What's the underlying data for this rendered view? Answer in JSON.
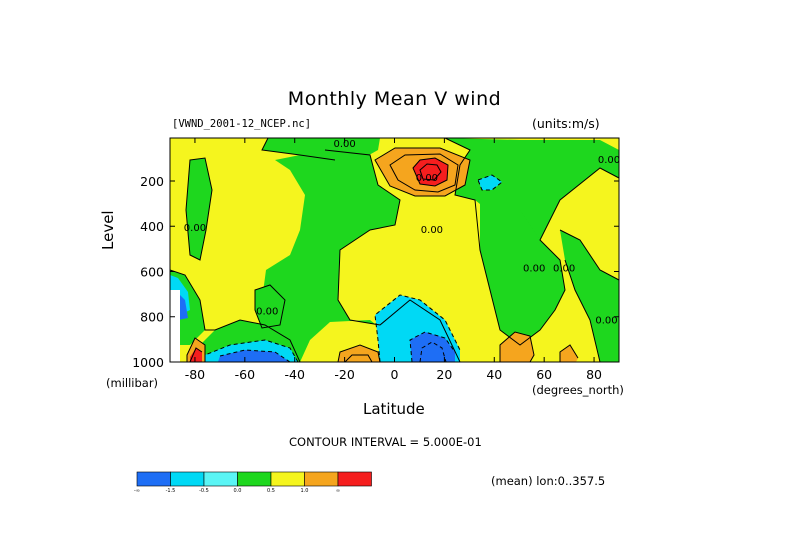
{
  "chart_data": {
    "type": "heatmap",
    "title": "Monthly Mean V wind",
    "file_label": "[VWND_2001-12_NCEP.nc]",
    "units_label": "(units:m/s)",
    "xlabel": "Latitude",
    "ylabel": "Level",
    "x_unit": "(degrees_north)",
    "y_unit": "(millibar)",
    "xlim": [
      -90,
      90
    ],
    "ylim": [
      1000,
      10
    ],
    "x_ticks": [
      -80,
      -60,
      -40,
      -20,
      0,
      20,
      40,
      60,
      80
    ],
    "y_ticks": [
      200,
      400,
      600,
      800,
      1000
    ],
    "contour_interval": "CONTOUR INTERVAL = 5.000E-01",
    "mean_note": "(mean) lon:0..357.5",
    "contour_labels": [
      {
        "text": "0.00",
        "lat": -20,
        "level": 50
      },
      {
        "text": "0.00",
        "lat": 13,
        "level": 200
      },
      {
        "text": "0.00",
        "lat": 86,
        "level": 120
      },
      {
        "text": "0.00",
        "lat": -80,
        "level": 420
      },
      {
        "text": "0.00",
        "lat": 15,
        "level": 430
      },
      {
        "text": "0.00",
        "lat": 56,
        "level": 600
      },
      {
        "text": "0.00",
        "lat": 68,
        "level": 600
      },
      {
        "text": "0.00",
        "lat": -51,
        "level": 790
      },
      {
        "text": "0.00",
        "lat": 85,
        "level": 830
      }
    ],
    "colorbar": {
      "colors": [
        "#0a6cf5",
        "#00e8f5",
        "#00d35a",
        "#f5f500",
        "#f5a800",
        "#f51010"
      ],
      "colors_full": [
        "#1e6ef5",
        "#00d9f5",
        "#5af5f5",
        "#1ed71e",
        "#f5f51e",
        "#f5a51e",
        "#f51e1e"
      ],
      "tick_labels": [
        "-∞",
        "-1.5",
        "-0.5",
        "0.0",
        "0.5",
        "1.0",
        "∞"
      ]
    }
  }
}
